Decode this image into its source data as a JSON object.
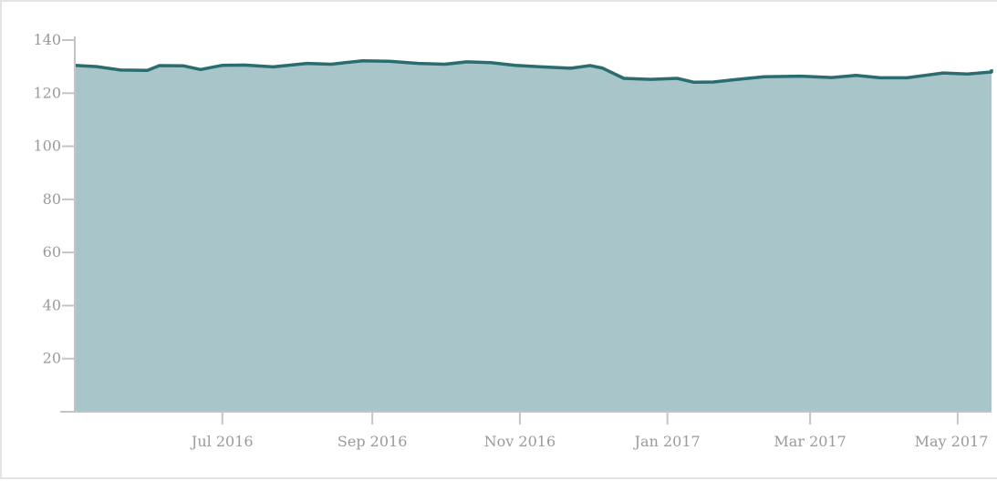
{
  "chart_data": {
    "type": "area",
    "title": "",
    "xlabel": "",
    "ylabel": "",
    "x_range": [
      "2016-05-01",
      "2017-05-15"
    ],
    "ylim": [
      0,
      140
    ],
    "y_ticks": [
      20,
      40,
      60,
      80,
      100,
      120,
      140
    ],
    "x_ticks": [
      {
        "date": "2016-07-01",
        "label": "Jul 2016"
      },
      {
        "date": "2016-09-01",
        "label": "Sep 2016"
      },
      {
        "date": "2016-11-01",
        "label": "Nov 2016"
      },
      {
        "date": "2017-01-01",
        "label": "Jan 2017"
      },
      {
        "date": "2017-03-01",
        "label": "Mar 2017"
      },
      {
        "date": "2017-05-01",
        "label": "May 2017"
      }
    ],
    "grid": false,
    "legend": "none",
    "series": [
      {
        "fill_color": "#a8c5c9",
        "line_color": "#2a6d6e",
        "points": [
          {
            "x": "2016-05-01",
            "y": 130.5
          },
          {
            "x": "2016-05-10",
            "y": 130.0
          },
          {
            "x": "2016-05-20",
            "y": 128.7
          },
          {
            "x": "2016-05-31",
            "y": 128.6
          },
          {
            "x": "2016-06-05",
            "y": 130.4
          },
          {
            "x": "2016-06-15",
            "y": 130.3
          },
          {
            "x": "2016-06-22",
            "y": 128.9
          },
          {
            "x": "2016-07-01",
            "y": 130.5
          },
          {
            "x": "2016-07-10",
            "y": 130.6
          },
          {
            "x": "2016-07-22",
            "y": 129.9
          },
          {
            "x": "2016-08-05",
            "y": 131.2
          },
          {
            "x": "2016-08-15",
            "y": 130.9
          },
          {
            "x": "2016-08-28",
            "y": 132.2
          },
          {
            "x": "2016-09-08",
            "y": 132.0
          },
          {
            "x": "2016-09-20",
            "y": 131.2
          },
          {
            "x": "2016-10-01",
            "y": 130.9
          },
          {
            "x": "2016-10-10",
            "y": 131.8
          },
          {
            "x": "2016-10-20",
            "y": 131.5
          },
          {
            "x": "2016-10-30",
            "y": 130.5
          },
          {
            "x": "2016-11-10",
            "y": 129.9
          },
          {
            "x": "2016-11-22",
            "y": 129.4
          },
          {
            "x": "2016-11-30",
            "y": 130.4
          },
          {
            "x": "2016-12-05",
            "y": 129.5
          },
          {
            "x": "2016-12-14",
            "y": 125.6
          },
          {
            "x": "2016-12-25",
            "y": 125.2
          },
          {
            "x": "2017-01-05",
            "y": 125.6
          },
          {
            "x": "2017-01-12",
            "y": 124.1
          },
          {
            "x": "2017-01-20",
            "y": 124.2
          },
          {
            "x": "2017-01-30",
            "y": 125.2
          },
          {
            "x": "2017-02-10",
            "y": 126.2
          },
          {
            "x": "2017-02-25",
            "y": 126.4
          },
          {
            "x": "2017-03-10",
            "y": 125.9
          },
          {
            "x": "2017-03-20",
            "y": 126.7
          },
          {
            "x": "2017-03-30",
            "y": 125.8
          },
          {
            "x": "2017-04-10",
            "y": 125.8
          },
          {
            "x": "2017-04-25",
            "y": 127.6
          },
          {
            "x": "2017-05-05",
            "y": 127.2
          },
          {
            "x": "2017-05-15",
            "y": 128.0
          },
          {
            "x": "2017-05-25",
            "y": 129.0
          }
        ]
      }
    ]
  }
}
